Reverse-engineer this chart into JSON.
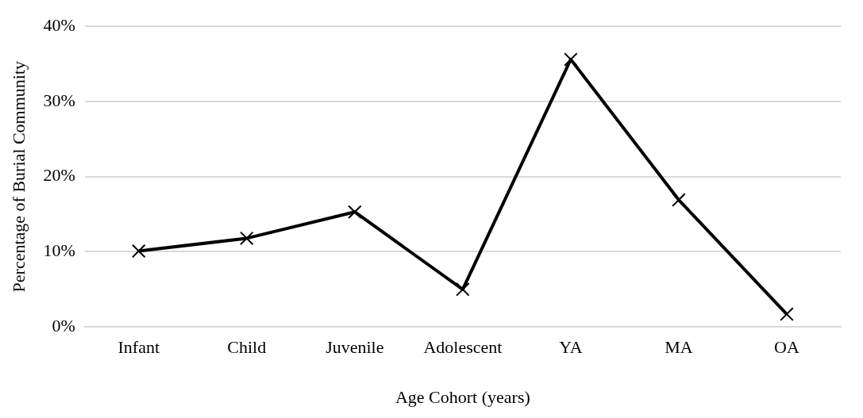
{
  "chart_data": {
    "type": "line",
    "xlabel": "Age Cohort (years)",
    "ylabel": "Percentage of Burial Community",
    "categories": [
      "Infant",
      "Child",
      "Juvenile",
      "Adolescent",
      "YA",
      "MA",
      "OA"
    ],
    "series": [
      {
        "color": "#000000",
        "values": [
          10.1,
          11.8,
          15.3,
          5.0,
          35.6,
          16.9,
          1.7
        ]
      }
    ],
    "ylim": [
      0,
      40
    ],
    "yticks": [
      {
        "value": 0,
        "label": "0%"
      },
      {
        "value": 10,
        "label": "10%"
      },
      {
        "value": 20,
        "label": "20%"
      },
      {
        "value": 30,
        "label": "30%"
      },
      {
        "value": 40,
        "label": "40%"
      }
    ],
    "grid": "y",
    "legend": false,
    "marker": "cross",
    "line_style": "solid"
  }
}
